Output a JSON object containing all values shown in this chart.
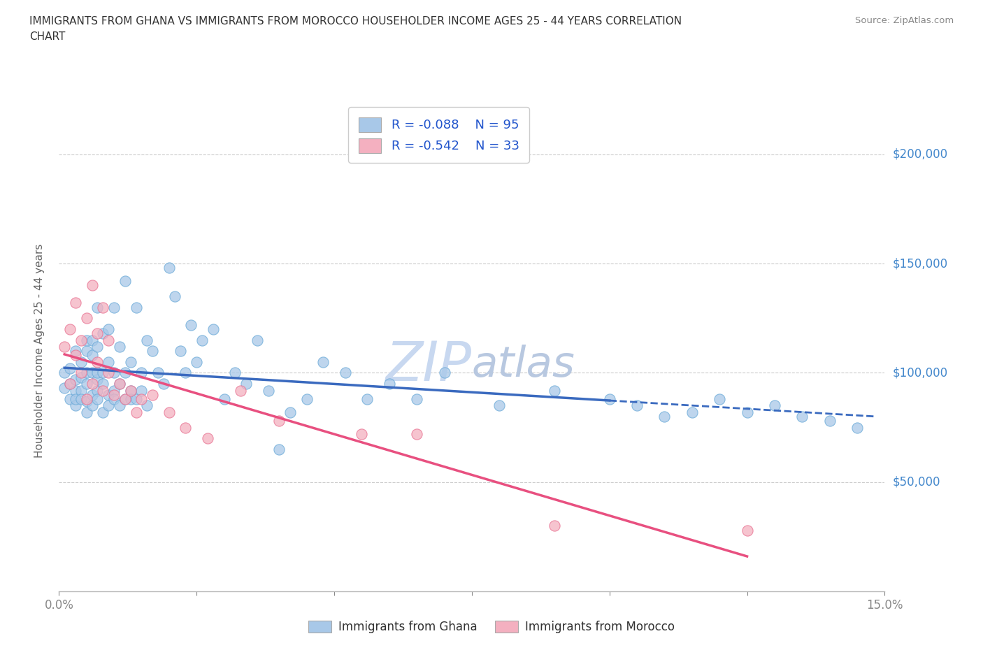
{
  "title_line1": "IMMIGRANTS FROM GHANA VS IMMIGRANTS FROM MOROCCO HOUSEHOLDER INCOME AGES 25 - 44 YEARS CORRELATION",
  "title_line2": "CHART",
  "source_text": "Source: ZipAtlas.com",
  "ylabel": "Householder Income Ages 25 - 44 years",
  "xlim": [
    0.0,
    0.15
  ],
  "ylim": [
    0,
    220000
  ],
  "xtick_positions": [
    0.0,
    0.025,
    0.05,
    0.075,
    0.1,
    0.125,
    0.15
  ],
  "xticklabels": [
    "0.0%",
    "",
    "",
    "",
    "",
    "",
    "15.0%"
  ],
  "ytick_positions": [
    50000,
    100000,
    150000,
    200000
  ],
  "ytick_labels": [
    "$50,000",
    "$100,000",
    "$150,000",
    "$200,000"
  ],
  "ghana_R": -0.088,
  "ghana_N": 95,
  "morocco_R": -0.542,
  "morocco_N": 33,
  "ghana_color": "#a8c8e8",
  "ghana_edge_color": "#6aaad8",
  "morocco_color": "#f4b0c0",
  "morocco_edge_color": "#e87090",
  "ghana_line_color": "#3a6abf",
  "morocco_line_color": "#e85080",
  "legend_text_color": "#2255cc",
  "ytick_label_color": "#4488cc",
  "watermark_color": "#c8d8f0",
  "ghana_scatter_x": [
    0.001,
    0.001,
    0.002,
    0.002,
    0.002,
    0.003,
    0.003,
    0.003,
    0.003,
    0.003,
    0.004,
    0.004,
    0.004,
    0.004,
    0.005,
    0.005,
    0.005,
    0.005,
    0.005,
    0.005,
    0.006,
    0.006,
    0.006,
    0.006,
    0.006,
    0.007,
    0.007,
    0.007,
    0.007,
    0.007,
    0.007,
    0.008,
    0.008,
    0.008,
    0.008,
    0.009,
    0.009,
    0.009,
    0.009,
    0.01,
    0.01,
    0.01,
    0.01,
    0.011,
    0.011,
    0.011,
    0.012,
    0.012,
    0.012,
    0.013,
    0.013,
    0.013,
    0.014,
    0.014,
    0.015,
    0.015,
    0.016,
    0.016,
    0.017,
    0.018,
    0.019,
    0.02,
    0.021,
    0.022,
    0.023,
    0.024,
    0.025,
    0.026,
    0.028,
    0.03,
    0.032,
    0.034,
    0.036,
    0.038,
    0.04,
    0.042,
    0.045,
    0.048,
    0.052,
    0.056,
    0.06,
    0.065,
    0.07,
    0.08,
    0.09,
    0.1,
    0.105,
    0.11,
    0.115,
    0.12,
    0.125,
    0.13,
    0.135,
    0.14,
    0.145
  ],
  "ghana_scatter_y": [
    93000,
    100000,
    88000,
    95000,
    102000,
    85000,
    92000,
    110000,
    88000,
    97000,
    92000,
    98000,
    105000,
    88000,
    87000,
    95000,
    110000,
    82000,
    115000,
    100000,
    90000,
    100000,
    115000,
    85000,
    108000,
    92000,
    97000,
    88000,
    112000,
    100000,
    130000,
    95000,
    100000,
    82000,
    118000,
    90000,
    105000,
    85000,
    120000,
    92000,
    100000,
    88000,
    130000,
    95000,
    112000,
    85000,
    100000,
    88000,
    142000,
    92000,
    105000,
    88000,
    88000,
    130000,
    100000,
    92000,
    115000,
    85000,
    110000,
    100000,
    95000,
    148000,
    135000,
    110000,
    100000,
    122000,
    105000,
    115000,
    120000,
    88000,
    100000,
    95000,
    115000,
    92000,
    65000,
    82000,
    88000,
    105000,
    100000,
    88000,
    95000,
    88000,
    100000,
    85000,
    92000,
    88000,
    85000,
    80000,
    82000,
    88000,
    82000,
    85000,
    80000,
    78000,
    75000
  ],
  "morocco_scatter_x": [
    0.001,
    0.002,
    0.002,
    0.003,
    0.003,
    0.004,
    0.004,
    0.005,
    0.005,
    0.006,
    0.006,
    0.007,
    0.007,
    0.008,
    0.008,
    0.009,
    0.009,
    0.01,
    0.011,
    0.012,
    0.013,
    0.014,
    0.015,
    0.017,
    0.02,
    0.023,
    0.027,
    0.033,
    0.04,
    0.055,
    0.065,
    0.09,
    0.125
  ],
  "morocco_scatter_y": [
    112000,
    95000,
    120000,
    108000,
    132000,
    100000,
    115000,
    88000,
    125000,
    95000,
    140000,
    105000,
    118000,
    92000,
    130000,
    100000,
    115000,
    90000,
    95000,
    88000,
    92000,
    82000,
    88000,
    90000,
    82000,
    75000,
    70000,
    92000,
    78000,
    72000,
    72000,
    30000,
    28000
  ],
  "ghana_line_x_start": 0.001,
  "ghana_line_x_end": 0.148,
  "morocco_line_x_start": 0.001,
  "morocco_line_x_end": 0.125
}
